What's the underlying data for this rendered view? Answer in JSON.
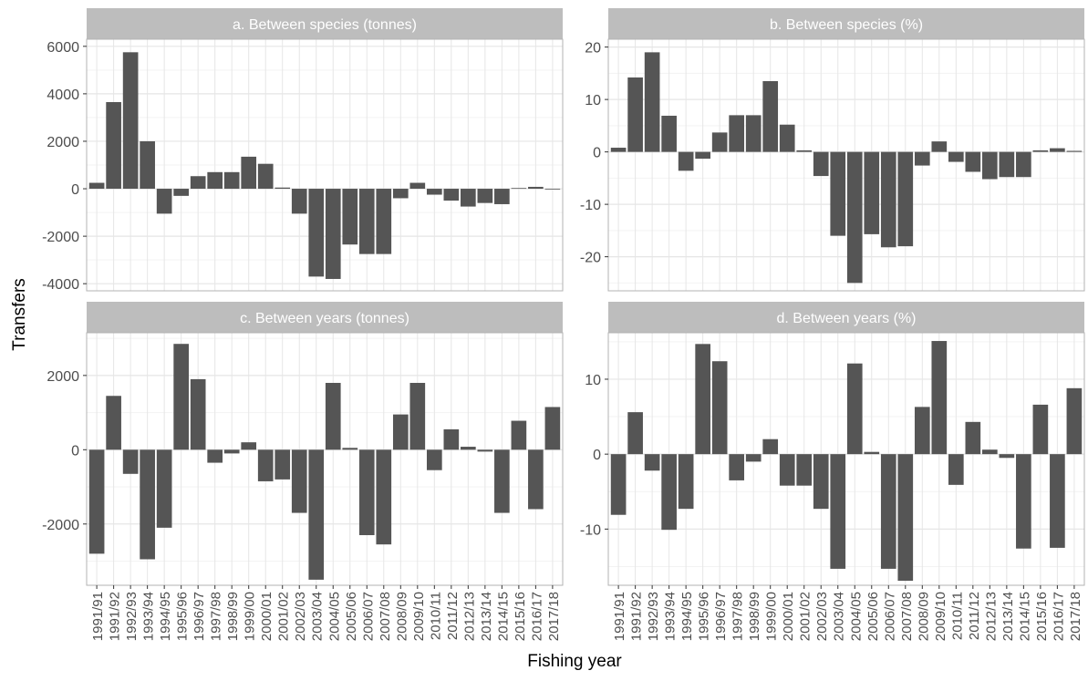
{
  "figure": {
    "ylabel": "Transfers",
    "xlabel": "Fishing year"
  },
  "colors": {
    "bar": "#555555",
    "strip_bg": "#bdbdbd",
    "strip_text": "#ffffff",
    "panel_border": "#b3b3b3",
    "grid_major": "#e6e6e6",
    "grid_minor": "#f3f3f3",
    "tick_text": "#4d4d4d"
  },
  "chart_data": [
    {
      "type": "bar",
      "title": "a. Between species (tonnes)",
      "categories": [
        "1991/91",
        "1991/92",
        "1992/93",
        "1993/94",
        "1994/95",
        "1995/96",
        "1996/97",
        "1997/98",
        "1998/99",
        "1999/00",
        "2000/01",
        "2001/02",
        "2002/03",
        "2003/04",
        "2004/05",
        "2005/06",
        "2006/07",
        "2007/08",
        "2008/09",
        "2009/10",
        "2010/11",
        "2011/12",
        "2012/13",
        "2013/14",
        "2014/15",
        "2015/16",
        "2016/17",
        "2017/18"
      ],
      "values": [
        250,
        3650,
        5750,
        2000,
        -1050,
        -300,
        530,
        700,
        700,
        1350,
        1050,
        50,
        -1050,
        -3700,
        -3800,
        -2350,
        -2750,
        -2750,
        -400,
        250,
        -250,
        -500,
        -750,
        -600,
        -650,
        30,
        80,
        -30
      ],
      "yticks": [
        -4000,
        -2000,
        0,
        2000,
        4000,
        6000
      ],
      "ylim": [
        -4300,
        6300
      ],
      "grid": true
    },
    {
      "type": "bar",
      "title": "b. Between species (%)",
      "categories": [
        "1991/91",
        "1991/92",
        "1992/93",
        "1993/94",
        "1994/95",
        "1995/96",
        "1996/97",
        "1997/98",
        "1998/99",
        "1999/00",
        "2000/01",
        "2001/02",
        "2002/03",
        "2003/04",
        "2004/05",
        "2005/06",
        "2006/07",
        "2007/08",
        "2008/09",
        "2009/10",
        "2010/11",
        "2011/12",
        "2012/13",
        "2013/14",
        "2014/15",
        "2015/16",
        "2016/17",
        "2017/18"
      ],
      "values": [
        0.8,
        14.2,
        19.0,
        6.9,
        -3.6,
        -1.3,
        3.7,
        7.0,
        7.0,
        13.5,
        5.2,
        0.3,
        -4.6,
        -16.0,
        -25.0,
        -15.7,
        -18.2,
        -18.0,
        -2.6,
        2.0,
        -1.9,
        -3.8,
        -5.2,
        -4.8,
        -4.8,
        0.3,
        0.7,
        0.2
      ],
      "yticks": [
        -20,
        -10,
        0,
        10,
        20
      ],
      "ylim": [
        -26.5,
        21.5
      ],
      "grid": true
    },
    {
      "type": "bar",
      "title": "c. Between years (tonnes)",
      "categories": [
        "1991/91",
        "1991/92",
        "1992/93",
        "1993/94",
        "1994/95",
        "1995/96",
        "1996/97",
        "1997/98",
        "1998/99",
        "1999/00",
        "2000/01",
        "2001/02",
        "2002/03",
        "2003/04",
        "2004/05",
        "2005/06",
        "2006/07",
        "2007/08",
        "2008/09",
        "2009/10",
        "2010/11",
        "2011/12",
        "2012/13",
        "2013/14",
        "2014/15",
        "2015/16",
        "2016/17",
        "2017/18"
      ],
      "values": [
        -2800,
        1450,
        -650,
        -2950,
        -2100,
        2850,
        1900,
        -350,
        -100,
        200,
        -850,
        -800,
        -1700,
        -3500,
        1800,
        50,
        -2300,
        -2550,
        950,
        1800,
        -550,
        550,
        80,
        -50,
        -1700,
        780,
        -1600,
        1150
      ],
      "yticks": [
        -2000,
        0,
        2000
      ],
      "ylim": [
        -3650,
        3150
      ],
      "grid": true
    },
    {
      "type": "bar",
      "title": "d. Between years (%)",
      "categories": [
        "1991/91",
        "1991/92",
        "1992/93",
        "1993/94",
        "1994/95",
        "1995/96",
        "1996/97",
        "1997/98",
        "1998/99",
        "1999/00",
        "2000/01",
        "2001/02",
        "2002/03",
        "2003/04",
        "2004/05",
        "2005/06",
        "2006/07",
        "2007/08",
        "2008/09",
        "2009/10",
        "2010/11",
        "2011/12",
        "2012/13",
        "2013/14",
        "2014/15",
        "2015/16",
        "2016/17",
        "2017/18"
      ],
      "values": [
        -8.1,
        5.6,
        -2.2,
        -10.1,
        -7.3,
        14.7,
        12.4,
        -3.5,
        -1.0,
        2.0,
        -4.2,
        -4.2,
        -7.3,
        -15.3,
        12.1,
        0.3,
        -15.3,
        -16.9,
        6.3,
        15.1,
        -4.1,
        4.3,
        0.6,
        -0.5,
        -12.6,
        6.6,
        -12.5,
        8.8
      ],
      "yticks": [
        -10,
        0,
        10
      ],
      "ylim": [
        -17.5,
        16.2
      ],
      "grid": true
    }
  ]
}
